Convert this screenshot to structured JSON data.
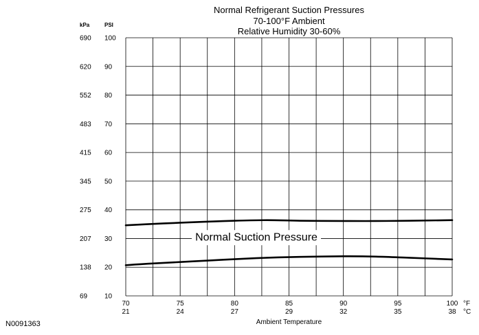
{
  "figure_id": "N0091363",
  "chart_data": {
    "type": "line",
    "title": [
      "Normal  Refrigerant  Suction  Pressures",
      "70-100°F Ambient",
      "Relative Humidity 30-60%"
    ],
    "xlabel": "Ambient Temperature",
    "x_unit_primary": "°F",
    "x_unit_secondary": "°C",
    "x_ticks": [
      {
        "f": "70",
        "c": "21"
      },
      {
        "f": "75",
        "c": "24"
      },
      {
        "f": "80",
        "c": "27"
      },
      {
        "f": "85",
        "c": "29"
      },
      {
        "f": "90",
        "c": "32"
      },
      {
        "f": "95",
        "c": "35"
      },
      {
        "f": "100",
        "c": "38"
      }
    ],
    "xlim": [
      70,
      100
    ],
    "y_unit_primary": "PSI",
    "y_unit_secondary": "kPa",
    "y_ticks": [
      {
        "psi": "100",
        "kpa": "690"
      },
      {
        "psi": "90",
        "kpa": "620"
      },
      {
        "psi": "80",
        "kpa": "552"
      },
      {
        "psi": "70",
        "kpa": "483"
      },
      {
        "psi": "60",
        "kpa": "415"
      },
      {
        "psi": "50",
        "kpa": "345"
      },
      {
        "psi": "40",
        "kpa": "275"
      },
      {
        "psi": "30",
        "kpa": "207"
      },
      {
        "psi": "20",
        "kpa": "138"
      },
      {
        "psi": "10",
        "kpa": "69"
      }
    ],
    "ylim": [
      10,
      100
    ],
    "grid": true,
    "band_label": "Normal Suction Pressure",
    "band_label_x": 82,
    "band_label_y": 30.3,
    "series": [
      {
        "role": "upper",
        "x": [
          70,
          72,
          75,
          77,
          80,
          83,
          86,
          90,
          93,
          96,
          100
        ],
        "y": [
          34.6,
          35.0,
          35.5,
          35.8,
          36.2,
          36.4,
          36.2,
          36.1,
          36.1,
          36.2,
          36.4
        ]
      },
      {
        "role": "lower",
        "x": [
          70,
          72,
          75,
          78,
          80,
          83,
          86,
          90,
          93,
          96,
          100
        ],
        "y": [
          20.7,
          21.2,
          21.8,
          22.4,
          22.8,
          23.3,
          23.6,
          23.8,
          23.7,
          23.3,
          22.7
        ]
      }
    ]
  }
}
